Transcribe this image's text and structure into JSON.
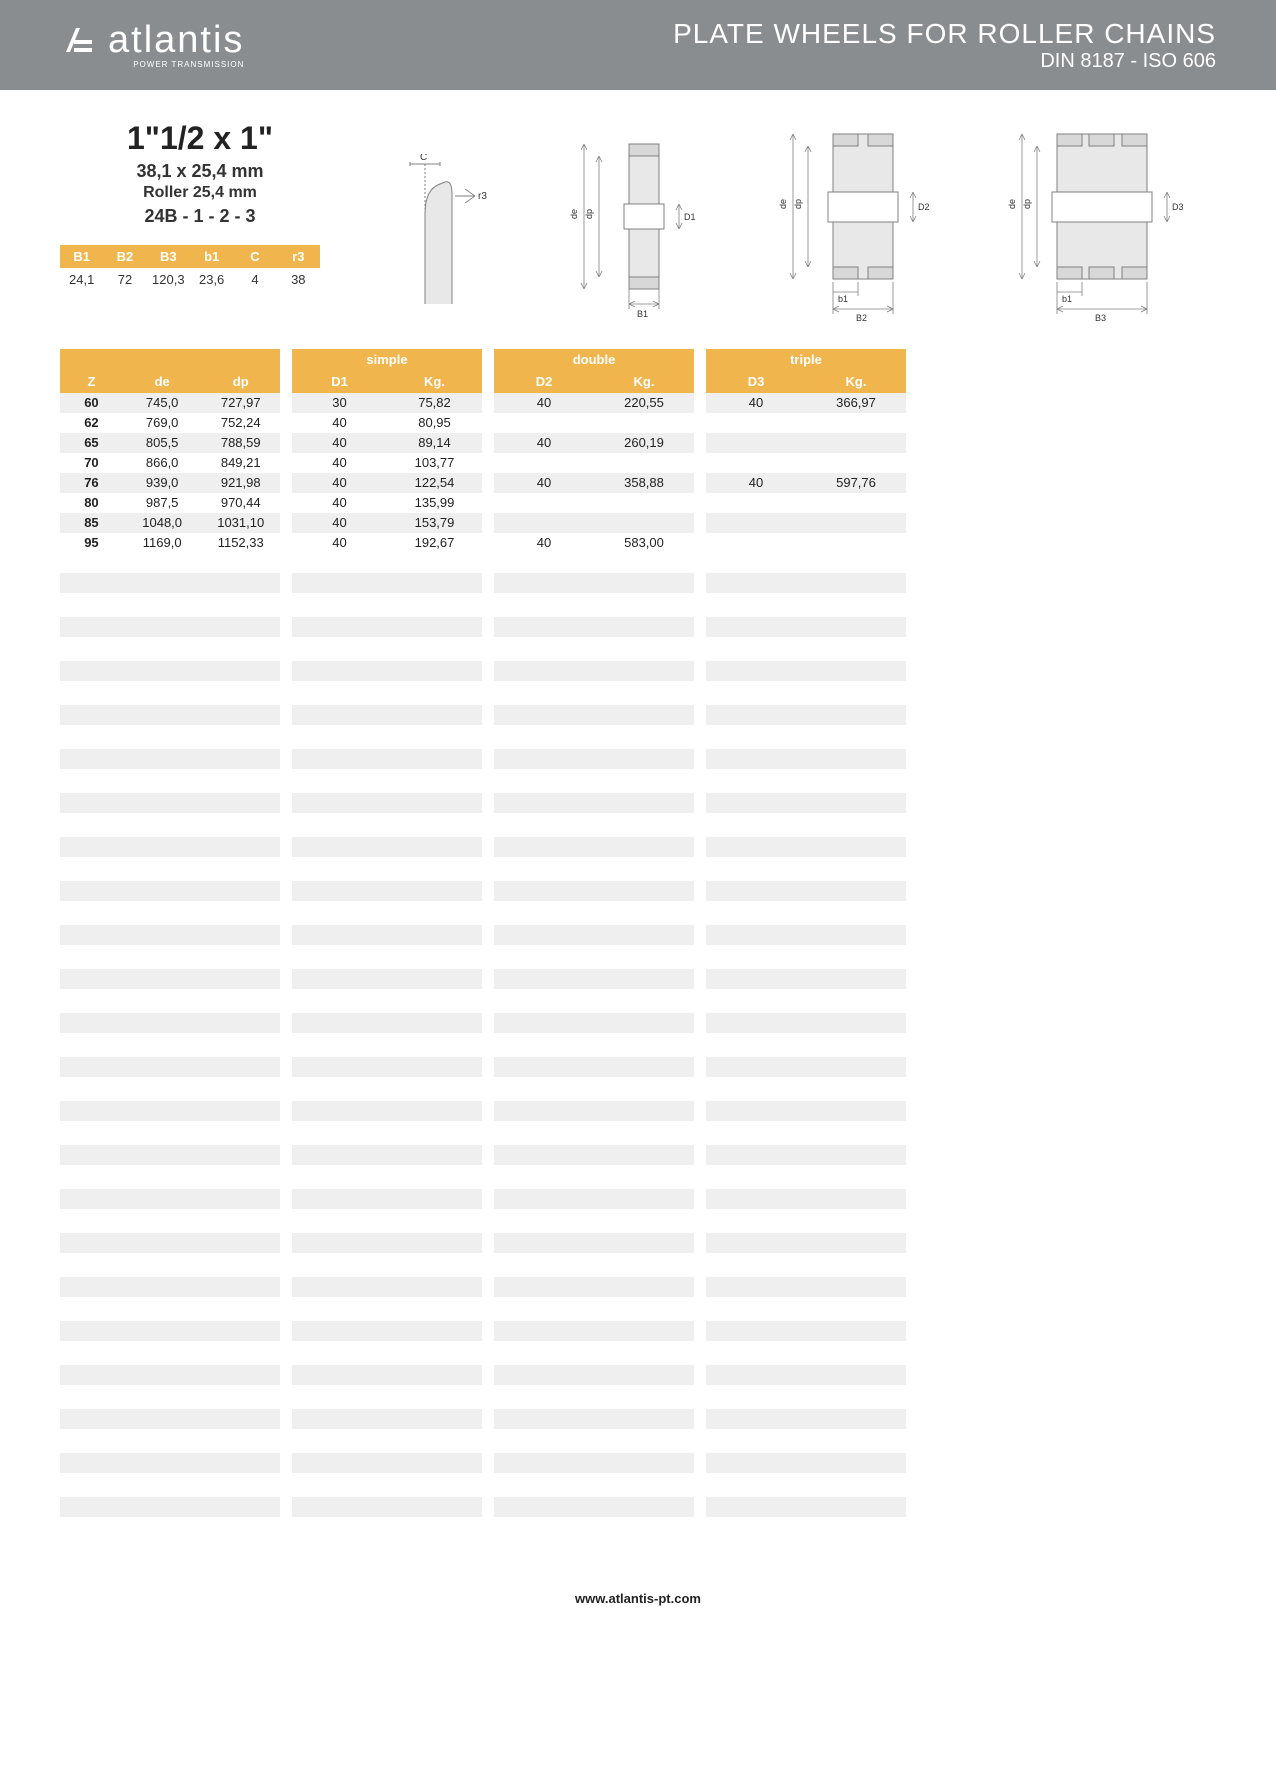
{
  "header": {
    "brand": "atlantis",
    "brand_sub": "POWER TRANSMISSION",
    "title": "PLATE WHEELS FOR ROLLER CHAINS",
    "subtitle": "DIN 8187 - ISO 606"
  },
  "spec": {
    "size": "1\"1/2 x 1\"",
    "mm": "38,1 x 25,4 mm",
    "roller": "Roller 25,4 mm",
    "code": "24B - 1 - 2 - 3"
  },
  "small_table": {
    "headers": [
      "B1",
      "B2",
      "B3",
      "b1",
      "C",
      "r3"
    ],
    "row": [
      "24,1",
      "72",
      "120,3",
      "23,6",
      "4",
      "38"
    ]
  },
  "diagram_labels": {
    "c": "C",
    "r3": "r3",
    "de": "de",
    "dp": "dp",
    "D1": "D1",
    "D2": "D2",
    "D3": "D3",
    "B1": "B1",
    "B2": "B2",
    "B3": "B3",
    "b1": "b1"
  },
  "tables": {
    "left": {
      "headers": [
        "Z",
        "de",
        "dp"
      ],
      "rows": [
        [
          "60",
          "745,0",
          "727,97"
        ],
        [
          "62",
          "769,0",
          "752,24"
        ],
        [
          "65",
          "805,5",
          "788,59"
        ],
        [
          "70",
          "866,0",
          "849,21"
        ],
        [
          "76",
          "939,0",
          "921,98"
        ],
        [
          "80",
          "987,5",
          "970,44"
        ],
        [
          "85",
          "1048,0",
          "1031,10"
        ],
        [
          "95",
          "1169,0",
          "1152,33"
        ]
      ]
    },
    "simple": {
      "title": "simple",
      "headers": [
        "D1",
        "Kg."
      ],
      "rows": [
        [
          "30",
          "75,82"
        ],
        [
          "40",
          "80,95"
        ],
        [
          "40",
          "89,14"
        ],
        [
          "40",
          "103,77"
        ],
        [
          "40",
          "122,54"
        ],
        [
          "40",
          "135,99"
        ],
        [
          "40",
          "153,79"
        ],
        [
          "40",
          "192,67"
        ]
      ]
    },
    "double": {
      "title": "double",
      "headers": [
        "D2",
        "Kg."
      ],
      "rows": [
        [
          "40",
          "220,55"
        ],
        [
          "",
          ""
        ],
        [
          "40",
          "260,19"
        ],
        [
          "",
          ""
        ],
        [
          "40",
          "358,88"
        ],
        [
          "",
          ""
        ],
        [
          "",
          ""
        ],
        [
          "40",
          "583,00"
        ]
      ]
    },
    "triple": {
      "title": "triple",
      "headers": [
        "D3",
        "Kg."
      ],
      "rows": [
        [
          "40",
          "366,97"
        ],
        [
          "",
          ""
        ],
        [
          "",
          ""
        ],
        [
          "",
          ""
        ],
        [
          "40",
          "597,76"
        ],
        [
          "",
          ""
        ],
        [
          "",
          ""
        ],
        [
          "",
          ""
        ]
      ]
    }
  },
  "colors": {
    "header_bg": "#8a8d90",
    "accent": "#f0b54d",
    "stripe": "#efefef",
    "diagram_stroke": "#808080",
    "diagram_fill": "#e8e8e8"
  },
  "empty_row_count": 22,
  "footer": "www.atlantis-pt.com"
}
